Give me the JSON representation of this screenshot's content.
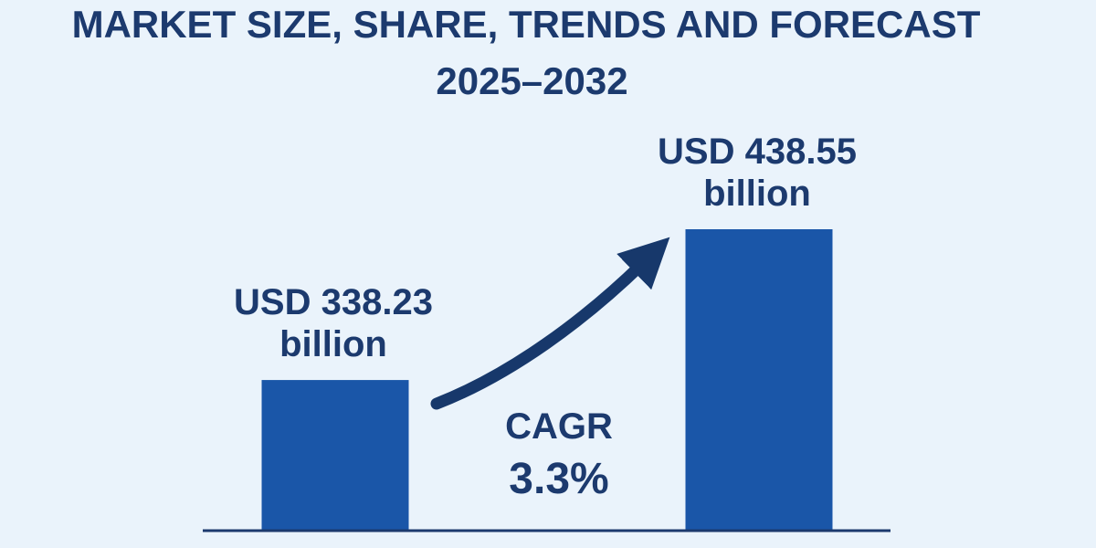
{
  "header": {
    "title_line1": "MARKET SIZE, SHARE, TRENDS AND FORECAST",
    "title_line2": "2025–2032"
  },
  "colors": {
    "background": "#eaf3fb",
    "bar": "#1a56a8",
    "text": "#1c3a6e",
    "arrow": "#17386b",
    "axis": "#1c3a6e"
  },
  "chart_data": {
    "type": "bar",
    "title": "MARKET SIZE, SHARE, TRENDS AND FORECAST 2025–2032",
    "values": [
      338.23,
      438.55
    ],
    "data_labels": [
      [
        "USD 338.23",
        "billion"
      ],
      [
        "USD 438.55",
        "billion"
      ]
    ],
    "unit": "USD billion",
    "annotation": {
      "label": "CAGR",
      "value": "3.3%"
    },
    "grid": false,
    "legend": "none"
  }
}
